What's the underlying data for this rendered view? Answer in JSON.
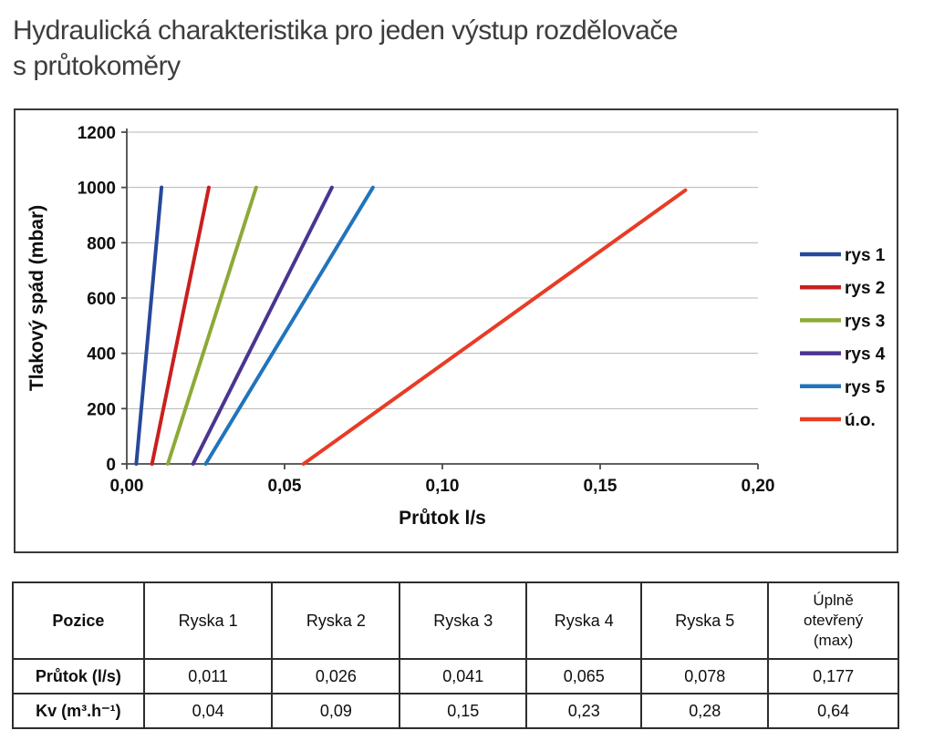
{
  "page": {
    "title_line1": "Hydraulická charakteristika pro jeden výstup rozdělovače",
    "title_line2": "s průtokoměry"
  },
  "chart_data": {
    "type": "line",
    "title": "",
    "xlabel": "Průtok l/s",
    "ylabel": "Tlakový spád (mbar)",
    "xlim": [
      0,
      0.2
    ],
    "ylim": [
      0,
      1200
    ],
    "x_tick_labels": [
      "0,00",
      "0,05",
      "0,10",
      "0,15",
      "0,20"
    ],
    "x_tick_values": [
      0,
      0.05,
      0.1,
      0.15,
      0.2
    ],
    "y_ticks": [
      0,
      200,
      400,
      600,
      800,
      1000,
      1200
    ],
    "grid": "horizontal",
    "legend_position": "right",
    "series": [
      {
        "name": "rys 1",
        "color": "#27489B",
        "points": [
          [
            0.003,
            0
          ],
          [
            0.011,
            1000
          ]
        ]
      },
      {
        "name": "rys 2",
        "color": "#C9201D",
        "points": [
          [
            0.008,
            0
          ],
          [
            0.026,
            1000
          ]
        ]
      },
      {
        "name": "rys 3",
        "color": "#8CAA38",
        "points": [
          [
            0.013,
            0
          ],
          [
            0.041,
            1000
          ]
        ]
      },
      {
        "name": "rys 4",
        "color": "#4B3590",
        "points": [
          [
            0.021,
            0
          ],
          [
            0.065,
            1000
          ]
        ]
      },
      {
        "name": "rys 5",
        "color": "#2174BC",
        "points": [
          [
            0.025,
            0
          ],
          [
            0.078,
            1000
          ]
        ]
      },
      {
        "name": "ú.o.",
        "color": "#E73C25",
        "points": [
          [
            0.056,
            0
          ],
          [
            0.177,
            990
          ]
        ]
      }
    ]
  },
  "table": {
    "columns": [
      "Pozice",
      "Ryska 1",
      "Ryska 2",
      "Ryska 3",
      "Ryska 4",
      "Ryska 5",
      "Úplně\notevřený\n(max)"
    ],
    "rows": [
      {
        "label": "Průtok (l/s)",
        "values": [
          "0,011",
          "0,026",
          "0,041",
          "0,065",
          "0,078",
          "0,177"
        ]
      },
      {
        "label": "Kv (m³.h⁻¹)",
        "values": [
          "0,04",
          "0,09",
          "0,15",
          "0,23",
          "0,28",
          "0,64"
        ]
      }
    ]
  },
  "colors": {
    "grid": "#b5b5b5",
    "axis": "#4a4a4a",
    "frame_border": "#3a3a3a",
    "table_border": "#2d2d2d",
    "title_text": "#3d3d3d"
  }
}
